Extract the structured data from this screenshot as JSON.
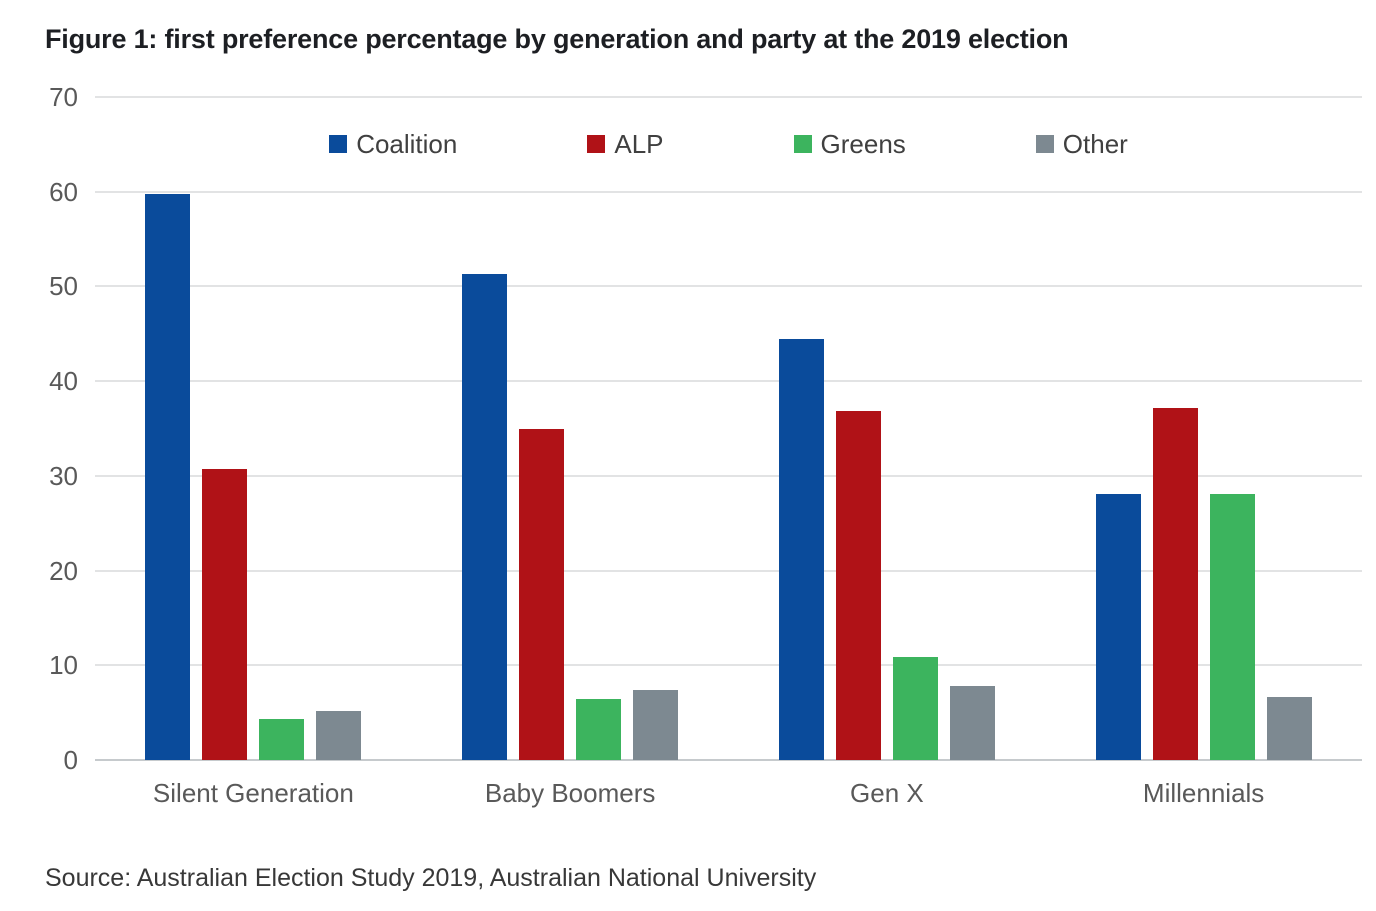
{
  "title": "Figure 1: first preference percentage by generation and party at the 2019 election",
  "source_note": "Source: Australian Election Study 2019, Australian National University",
  "colors": {
    "coalition": "#0A4B9B",
    "alp": "#B01217",
    "greens": "#3CB45E",
    "other": "#7D8991",
    "gridline": "#E2E3E4",
    "zero_line": "#C6CACD",
    "title_text": "#1D1F23",
    "axis_text": "#595959",
    "legend_text": "#404040",
    "source_text": "#383838"
  },
  "chart_data": {
    "type": "bar",
    "title": "Figure 1: first preference percentage by generation and party at the 2019 election",
    "categories": [
      "Silent Generation",
      "Baby Boomers",
      "Gen X",
      "Millennials"
    ],
    "series": [
      {
        "name": "Coalition",
        "color": "#0A4B9B",
        "values": [
          59.8,
          51.3,
          44.4,
          28.1
        ]
      },
      {
        "name": "ALP",
        "color": "#B01217",
        "values": [
          30.7,
          35.0,
          36.9,
          37.2
        ]
      },
      {
        "name": "Greens",
        "color": "#3CB45E",
        "values": [
          4.3,
          6.4,
          10.9,
          28.1
        ]
      },
      {
        "name": "Other",
        "color": "#7D8991",
        "values": [
          5.2,
          7.4,
          7.8,
          6.7
        ]
      }
    ],
    "xlabel": "",
    "ylabel": "",
    "ylim": [
      0,
      70
    ],
    "yticks": [
      0,
      10,
      20,
      30,
      40,
      50,
      60,
      70
    ],
    "grid": true,
    "legend_position": "top-center"
  }
}
